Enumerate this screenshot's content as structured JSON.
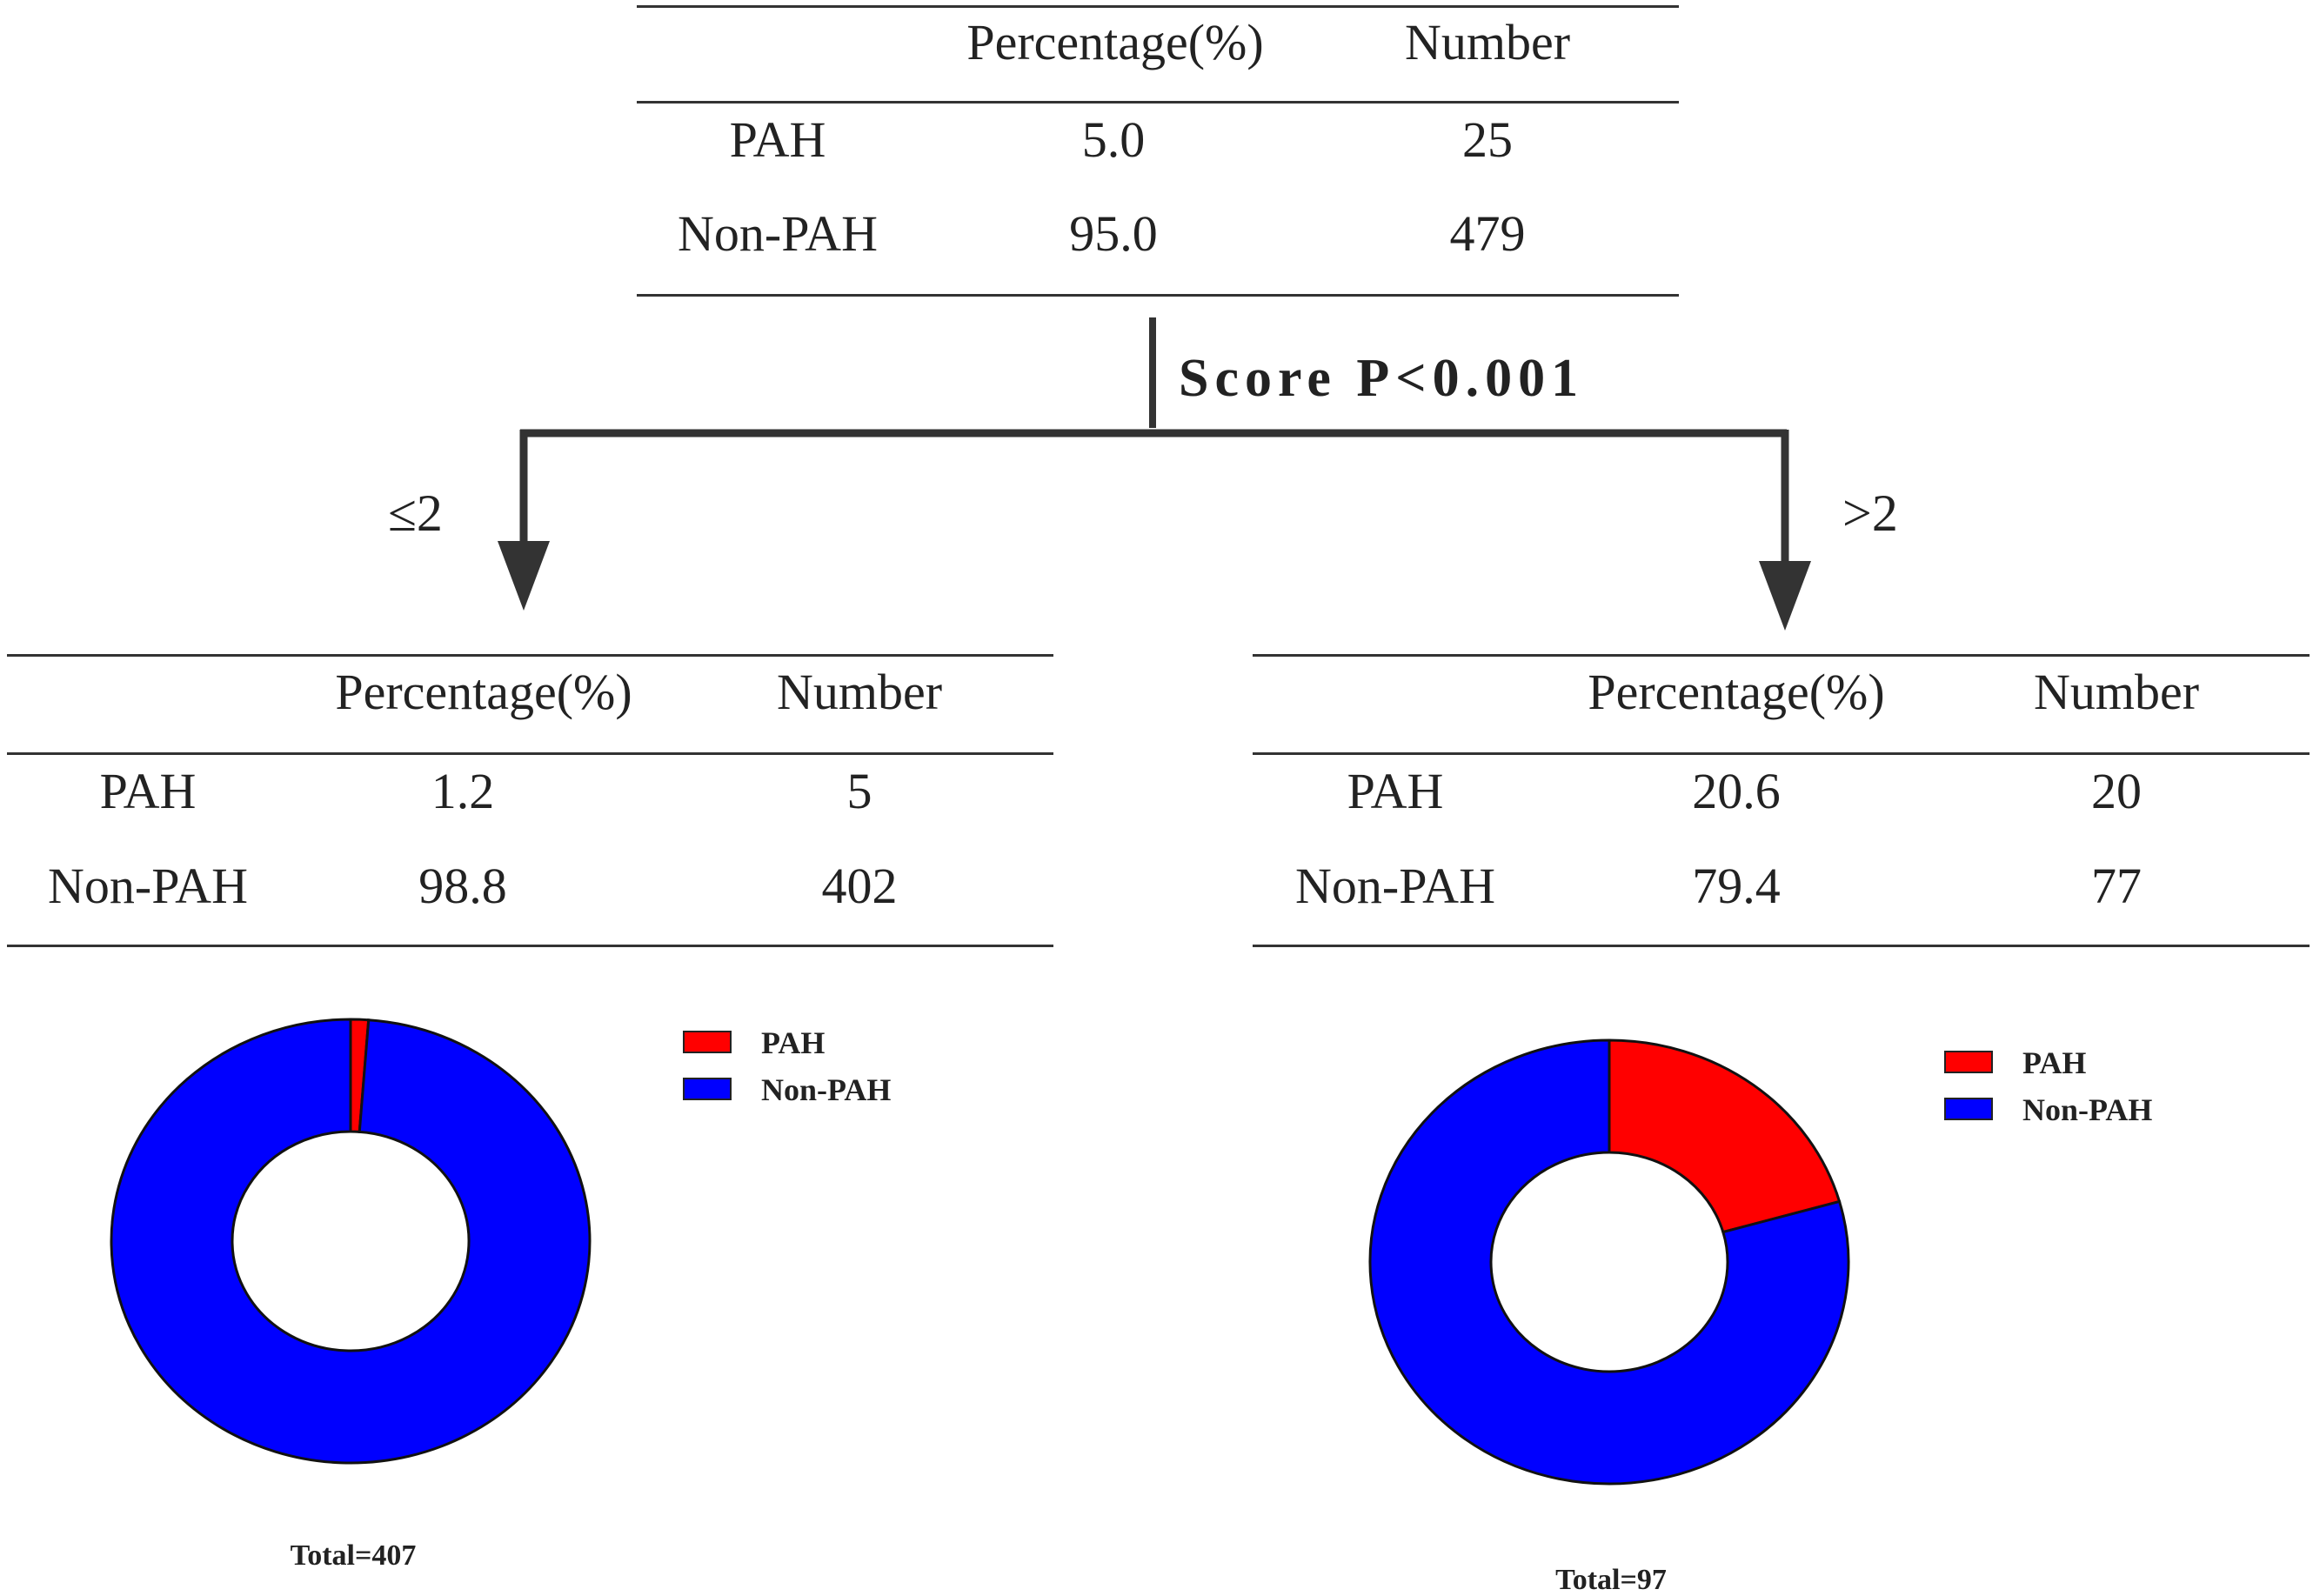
{
  "colors": {
    "pah": "#ff0000",
    "non_pah": "#0000ff",
    "line": "#333333"
  },
  "root_table": {
    "headers": [
      "",
      "Percentage(%)",
      "Number"
    ],
    "rows": [
      {
        "label": "PAH",
        "percentage": "5.0",
        "number": "25"
      },
      {
        "label": "Non-PAH",
        "percentage": "95.0",
        "number": "479"
      }
    ]
  },
  "split": {
    "label": "Score P<0.001",
    "left_branch": "≤2",
    "right_branch": ">2"
  },
  "left_table": {
    "headers": [
      "",
      "Percentage(%)",
      "Number"
    ],
    "rows": [
      {
        "label": "PAH",
        "percentage": "1.2",
        "number": "5"
      },
      {
        "label": "Non-PAH",
        "percentage": "98.8",
        "number": "402"
      }
    ]
  },
  "right_table": {
    "headers": [
      "",
      "Percentage(%)",
      "Number"
    ],
    "rows": [
      {
        "label": "PAH",
        "percentage": "20.6",
        "number": "20"
      },
      {
        "label": "Non-PAH",
        "percentage": "79.4",
        "number": "77"
      }
    ]
  },
  "chart_data": [
    {
      "type": "pie",
      "categories": [
        "PAH",
        "Non-PAH"
      ],
      "values": [
        1.2,
        98.8
      ],
      "legend": [
        "PAH",
        "Non-PAH"
      ],
      "caption": "Total=407",
      "donut": true
    },
    {
      "type": "pie",
      "categories": [
        "PAH",
        "Non-PAH"
      ],
      "values": [
        20.6,
        79.4
      ],
      "legend": [
        "PAH",
        "Non-PAH"
      ],
      "caption": "Total=97",
      "donut": true
    }
  ]
}
